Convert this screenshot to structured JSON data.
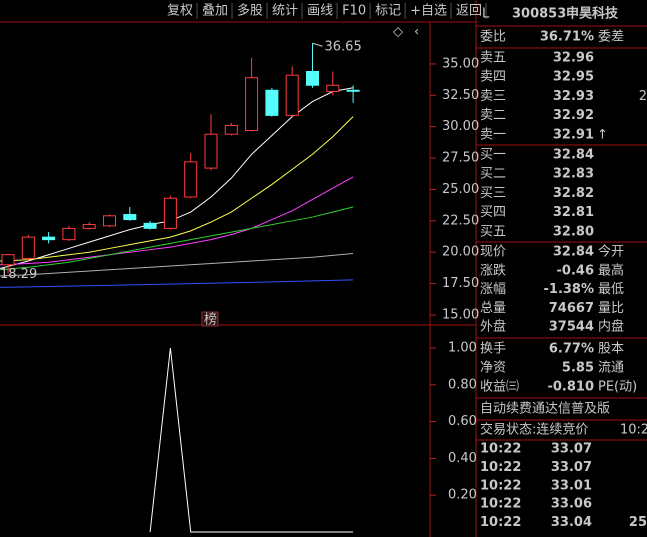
{
  "toolbar": [
    "复权",
    "叠加",
    "多股",
    "统计",
    "画线",
    "F10",
    "标记",
    "+自选",
    "返回"
  ],
  "kline": {
    "ylim": [
      14.2,
      38.34
    ],
    "yticks": [
      {
        "value": 35,
        "label": "35.00"
      },
      {
        "value": 32.5,
        "label": "32.50"
      },
      {
        "value": 30,
        "label": "30.00"
      },
      {
        "value": 27.5,
        "label": "27.50"
      },
      {
        "value": 25,
        "label": "25.00"
      },
      {
        "value": 22.5,
        "label": "22.50"
      },
      {
        "value": 20,
        "label": "20.00"
      },
      {
        "value": 17.5,
        "label": "17.50"
      },
      {
        "value": 15,
        "label": "15.00"
      }
    ],
    "up_color": "#ff3c3c",
    "down_color": "#54fcfc",
    "candles": [
      {
        "open": 19.0,
        "close": 19.8,
        "high": 19.9,
        "low": 18.29
      },
      {
        "open": 19.5,
        "close": 21.2,
        "high": 21.4,
        "low": 19.3
      },
      {
        "open": 21.2,
        "close": 21.0,
        "high": 21.6,
        "low": 20.7
      },
      {
        "open": 21.0,
        "close": 21.9,
        "high": 22.1,
        "low": 20.9
      },
      {
        "open": 21.9,
        "close": 22.2,
        "high": 22.4,
        "low": 21.8
      },
      {
        "open": 22.1,
        "close": 22.9,
        "high": 23.0,
        "low": 22.0
      },
      {
        "open": 23.0,
        "close": 22.6,
        "high": 23.6,
        "low": 22.5
      },
      {
        "open": 22.3,
        "close": 21.9,
        "high": 22.5,
        "low": 21.8
      },
      {
        "open": 21.9,
        "close": 24.3,
        "high": 24.5,
        "low": 21.8
      },
      {
        "open": 24.4,
        "close": 27.2,
        "high": 27.9,
        "low": 24.3
      },
      {
        "open": 26.7,
        "close": 29.4,
        "high": 31.0,
        "low": 26.5
      },
      {
        "open": 29.4,
        "close": 30.1,
        "high": 30.3,
        "low": 29.3
      },
      {
        "open": 29.7,
        "close": 33.9,
        "high": 35.5,
        "low": 29.6
      },
      {
        "open": 32.9,
        "close": 30.9,
        "high": 33.1,
        "low": 30.8
      },
      {
        "open": 30.9,
        "close": 34.1,
        "high": 34.8,
        "low": 30.8
      },
      {
        "open": 34.4,
        "close": 33.3,
        "high": 36.65,
        "low": 33.1
      },
      {
        "open": 32.8,
        "close": 33.3,
        "high": 34.4,
        "low": 32.5
      },
      {
        "open": 32.9,
        "close": 32.84,
        "high": 33.3,
        "low": 31.9
      }
    ],
    "ma": [
      {
        "color": "#ffffff",
        "values": [
          18.7,
          19.3,
          19.8,
          20.3,
          20.8,
          21.3,
          21.8,
          22.2,
          22.5,
          23.2,
          24.4,
          25.9,
          27.8,
          29.3,
          30.8,
          32.0,
          32.8,
          33.1
        ]
      },
      {
        "color": "#ffff54",
        "values": [
          19.3,
          19.4,
          19.6,
          19.8,
          20.0,
          20.3,
          20.6,
          20.9,
          21.2,
          21.7,
          22.4,
          23.2,
          24.3,
          25.4,
          26.6,
          27.8,
          29.2,
          30.8
        ]
      },
      {
        "color": "#ff40ff",
        "values": [
          19.0,
          19.1,
          19.2,
          19.4,
          19.6,
          19.8,
          20.0,
          20.2,
          20.4,
          20.7,
          21.0,
          21.4,
          21.9,
          22.6,
          23.3,
          24.2,
          25.1,
          26.0
        ]
      },
      {
        "color": "#30d030",
        "values": [
          18.6,
          18.8,
          19.0,
          19.2,
          19.5,
          19.8,
          20.1,
          20.4,
          20.7,
          21.0,
          21.3,
          21.6,
          21.9,
          22.2,
          22.5,
          22.8,
          23.2,
          23.6
        ]
      },
      {
        "color": "#b0b0b0",
        "values": [
          18.1,
          18.2,
          18.3,
          18.4,
          18.5,
          18.6,
          18.7,
          18.8,
          18.9,
          19.0,
          19.1,
          19.2,
          19.3,
          19.4,
          19.5,
          19.6,
          19.75,
          19.9
        ]
      },
      {
        "color": "#3050ff",
        "values": [
          17.2,
          17.24,
          17.27,
          17.3,
          17.33,
          17.36,
          17.4,
          17.43,
          17.46,
          17.5,
          17.53,
          17.57,
          17.6,
          17.64,
          17.68,
          17.72,
          17.76,
          17.8
        ]
      }
    ],
    "marker": "榜"
  },
  "indicator": {
    "ylim": [
      -0.027,
      1.125
    ],
    "yticks": [
      {
        "value": 1,
        "label": "1.00"
      },
      {
        "value": 0.8,
        "label": "0.80"
      },
      {
        "value": 0.6,
        "label": "0.60"
      },
      {
        "value": 0.4,
        "label": "0.40"
      },
      {
        "value": 0.2,
        "label": "0.20"
      }
    ],
    "color": "#ffffff",
    "values": [
      null,
      null,
      null,
      null,
      null,
      null,
      null,
      0,
      1,
      0,
      0,
      0,
      0,
      0,
      0,
      0,
      0,
      0
    ]
  },
  "quote": {
    "flag": "L",
    "code": "300853",
    "name": "申昊科技",
    "ratio": {
      "label": "委比",
      "value": "36.71%",
      "color": "#ff4040",
      "right": "委差"
    },
    "asks": [
      {
        "label": "卖五",
        "price": "32.96",
        "color": "#40e040"
      },
      {
        "label": "卖四",
        "price": "32.95",
        "color": "#40e040"
      },
      {
        "label": "卖三",
        "price": "32.93",
        "color": "#40e040",
        "vol": "2"
      },
      {
        "label": "卖二",
        "price": "32.92",
        "color": "#40e040"
      },
      {
        "label": "卖一",
        "price": "32.91",
        "color": "#ff4040",
        "arrow": "↑"
      }
    ],
    "bids": [
      {
        "label": "买一",
        "price": "32.84",
        "color": "#40e040"
      },
      {
        "label": "买二",
        "price": "32.83",
        "color": "#40e040"
      },
      {
        "label": "买三",
        "price": "32.82",
        "color": "#40e040"
      },
      {
        "label": "买四",
        "price": "32.81",
        "color": "#40e040"
      },
      {
        "label": "买五",
        "price": "32.80",
        "color": "#40e040"
      }
    ],
    "stats": [
      {
        "label": "现价",
        "value": "32.84",
        "color": "#40e040",
        "right": "今开"
      },
      {
        "label": "涨跌",
        "value": "-0.46",
        "color": "#40e040",
        "right": "最高"
      },
      {
        "label": "涨幅",
        "value": "-1.38%",
        "color": "#40e040",
        "right": "最低"
      },
      {
        "label": "总量",
        "value": "74667",
        "color": "#ffff54",
        "right": "量比"
      },
      {
        "label": "外盘",
        "value": "37544",
        "color": "#ff4040",
        "right": "内盘"
      }
    ],
    "fundamentals": [
      {
        "label": "换手",
        "value": "6.77%",
        "color": "#ffffff",
        "right": "股本"
      },
      {
        "label": "净资",
        "value": "5.85",
        "color": "#ffffff",
        "right": "流通"
      },
      {
        "label": "收益㈢",
        "value": "-0.810",
        "color": "#ffffff",
        "right": "PE(动)"
      }
    ],
    "ad": "自动续费通达信普及版",
    "status": "交易状态:连续竞价",
    "status_time": "10:2",
    "ticks": [
      {
        "time": "10:22",
        "price": "33.07"
      },
      {
        "time": "10:22",
        "price": "33.07"
      },
      {
        "time": "10:22",
        "price": "33.01"
      },
      {
        "time": "10:22",
        "price": "33.06"
      },
      {
        "time": "10:22",
        "price": "33.04",
        "vol": "25"
      }
    ]
  }
}
